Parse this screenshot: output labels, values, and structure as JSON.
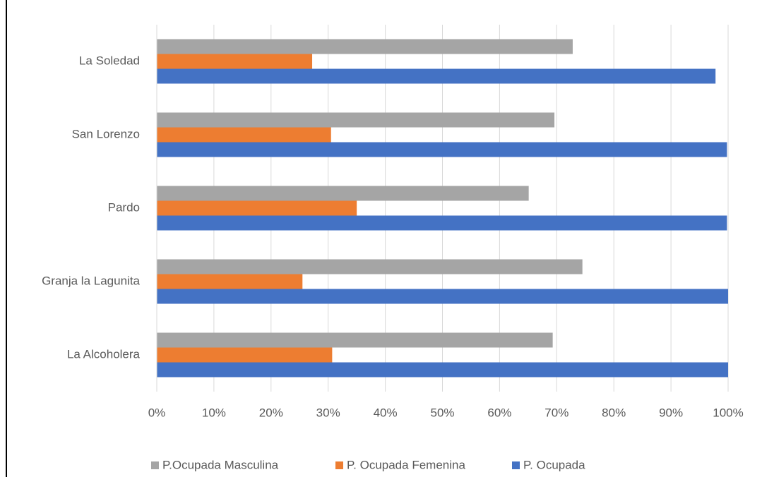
{
  "chart_data": {
    "type": "bar",
    "orientation": "horizontal",
    "categories": [
      "La Alcoholera",
      "Granja la Lagunita",
      "Pardo",
      "San Lorenzo",
      "La Soledad"
    ],
    "series": [
      {
        "name": "P.Ocupada Masculina",
        "color": "#a5a5a5",
        "values": [
          69.3,
          74.5,
          65.1,
          69.6,
          72.8
        ]
      },
      {
        "name": "P. Ocupada Femenina",
        "color": "#ed7d31",
        "values": [
          30.7,
          25.5,
          35.0,
          30.5,
          27.2
        ]
      },
      {
        "name": "P. Ocupada",
        "color": "#4472c4",
        "values": [
          100,
          100,
          99.8,
          99.8,
          97.8
        ]
      }
    ],
    "xlim": [
      0,
      100
    ],
    "xticks": [
      {
        "value": 0,
        "label": "0%"
      },
      {
        "value": 10,
        "label": "10%"
      },
      {
        "value": 20,
        "label": "20%"
      },
      {
        "value": 30,
        "label": "30%"
      },
      {
        "value": 40,
        "label": "40%"
      },
      {
        "value": 50,
        "label": "50%"
      },
      {
        "value": 60,
        "label": "60%"
      },
      {
        "value": 70,
        "label": "70%"
      },
      {
        "value": 80,
        "label": "80%"
      },
      {
        "value": 90,
        "label": "90%"
      },
      {
        "value": 100,
        "label": "100%"
      }
    ],
    "grid": true,
    "legend": "bottom"
  }
}
